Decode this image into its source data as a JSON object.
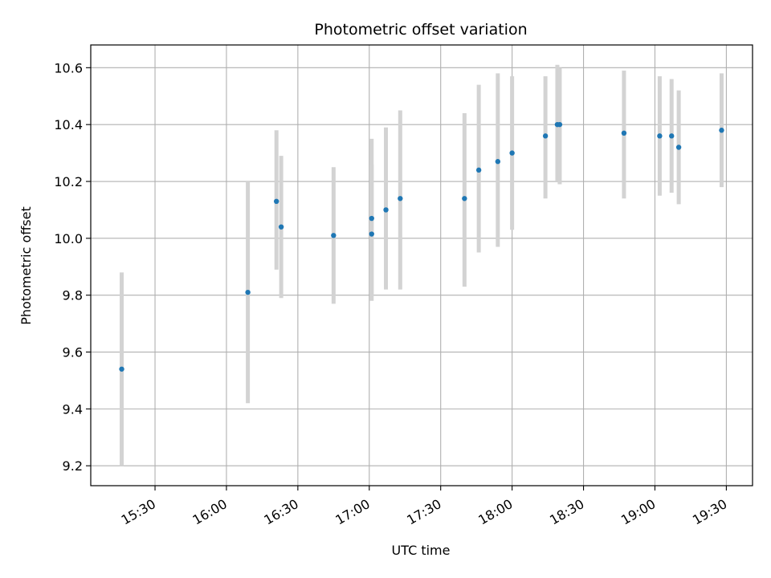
{
  "chart_data": {
    "type": "scatter",
    "title": "Photometric offset variation",
    "xlabel": "UTC time",
    "ylabel": "Photometric offset",
    "x_ticks": [
      "15:30",
      "16:00",
      "16:30",
      "17:00",
      "17:30",
      "18:00",
      "18:30",
      "19:00",
      "19:30"
    ],
    "y_ticks": [
      "9.2",
      "9.4",
      "9.6",
      "9.8",
      "10.0",
      "10.2",
      "10.4",
      "10.6"
    ],
    "xlim": [
      "15:03",
      "19:41"
    ],
    "ylim": [
      9.13,
      10.68
    ],
    "grid": true,
    "marker_color": "#1f77b4",
    "errorbar_color": "#d3d3d3",
    "points": [
      {
        "time": "15:16",
        "y": 9.54,
        "ylow": 9.2,
        "yhigh": 9.88
      },
      {
        "time": "16:09",
        "y": 9.81,
        "ylow": 9.42,
        "yhigh": 10.2
      },
      {
        "time": "16:21",
        "y": 10.13,
        "ylow": 9.89,
        "yhigh": 10.38
      },
      {
        "time": "16:23",
        "y": 10.04,
        "ylow": 9.79,
        "yhigh": 10.29
      },
      {
        "time": "16:45",
        "y": 10.01,
        "ylow": 9.77,
        "yhigh": 10.25
      },
      {
        "time": "17:01",
        "y": 10.015,
        "ylow": 9.78,
        "yhigh": 10.26
      },
      {
        "time": "17:01",
        "y": 10.07,
        "ylow": 9.8,
        "yhigh": 10.35
      },
      {
        "time": "17:07",
        "y": 10.1,
        "ylow": 9.82,
        "yhigh": 10.39
      },
      {
        "time": "17:13",
        "y": 10.14,
        "ylow": 9.82,
        "yhigh": 10.45
      },
      {
        "time": "17:40",
        "y": 10.14,
        "ylow": 9.83,
        "yhigh": 10.44
      },
      {
        "time": "17:46",
        "y": 10.24,
        "ylow": 9.95,
        "yhigh": 10.54
      },
      {
        "time": "17:54",
        "y": 10.27,
        "ylow": 9.97,
        "yhigh": 10.58
      },
      {
        "time": "18:00",
        "y": 10.3,
        "ylow": 10.03,
        "yhigh": 10.57
      },
      {
        "time": "18:14",
        "y": 10.36,
        "ylow": 10.14,
        "yhigh": 10.57
      },
      {
        "time": "18:19",
        "y": 10.4,
        "ylow": 10.2,
        "yhigh": 10.61
      },
      {
        "time": "18:20",
        "y": 10.4,
        "ylow": 10.19,
        "yhigh": 10.6
      },
      {
        "time": "18:47",
        "y": 10.37,
        "ylow": 10.14,
        "yhigh": 10.59
      },
      {
        "time": "19:02",
        "y": 10.36,
        "ylow": 10.15,
        "yhigh": 10.57
      },
      {
        "time": "19:07",
        "y": 10.36,
        "ylow": 10.16,
        "yhigh": 10.56
      },
      {
        "time": "19:10",
        "y": 10.32,
        "ylow": 10.12,
        "yhigh": 10.52
      },
      {
        "time": "19:28",
        "y": 10.38,
        "ylow": 10.18,
        "yhigh": 10.58
      }
    ]
  }
}
